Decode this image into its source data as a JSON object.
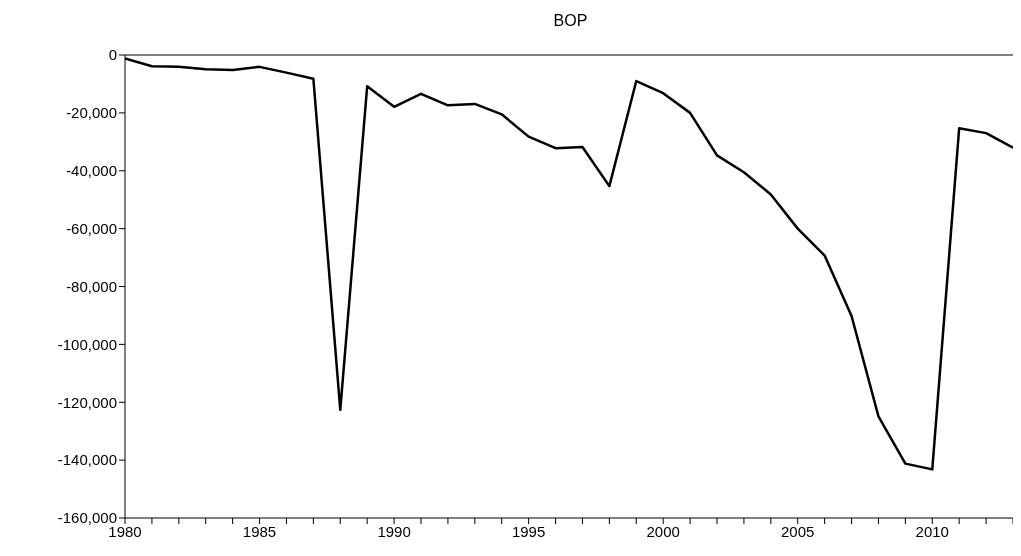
{
  "chart_data": {
    "type": "line",
    "title": "BOP",
    "x": [
      1980,
      1981,
      1982,
      1983,
      1984,
      1985,
      1986,
      1987,
      1988,
      1989,
      1990,
      1991,
      1992,
      1993,
      1994,
      1995,
      1996,
      1997,
      1998,
      1999,
      2000,
      2001,
      2002,
      2003,
      2004,
      2005,
      2006,
      2007,
      2008,
      2009,
      2010,
      2011,
      2012,
      2013
    ],
    "series": [
      {
        "color": "#000000",
        "values": [
          -1200,
          -3900,
          -4100,
          -4900,
          -5200,
          -4100,
          -6100,
          -8200,
          -122600,
          -10800,
          -17900,
          -13400,
          -17400,
          -16900,
          -20500,
          -28200,
          -32200,
          -31800,
          -45300,
          -9000,
          -13200,
          -20000,
          -34700,
          -40500,
          -48200,
          -60000,
          -69300,
          -90200,
          -124900,
          -141200,
          -143200,
          -25300,
          -27000,
          -32000
        ]
      }
    ],
    "xlim": [
      1980,
      2013
    ],
    "xticks": [
      1980,
      {
        "value": 1981,
        "label": null
      },
      {
        "value": 1982,
        "label": null
      },
      {
        "value": 1983,
        "label": null
      },
      {
        "value": 1984,
        "label": null
      },
      1985,
      {
        "value": 1986,
        "label": null
      },
      {
        "value": 1987,
        "label": null
      },
      {
        "value": 1988,
        "label": null
      },
      {
        "value": 1989,
        "label": null
      },
      1990,
      {
        "value": 1991,
        "label": null
      },
      {
        "value": 1992,
        "label": null
      },
      {
        "value": 1993,
        "label": null
      },
      {
        "value": 1994,
        "label": null
      },
      1995,
      {
        "value": 1996,
        "label": null
      },
      {
        "value": 1997,
        "label": null
      },
      {
        "value": 1998,
        "label": null
      },
      {
        "value": 1999,
        "label": null
      },
      2000,
      {
        "value": 2001,
        "label": null
      },
      {
        "value": 2002,
        "label": null
      },
      {
        "value": 2003,
        "label": null
      },
      {
        "value": 2004,
        "label": null
      },
      2005,
      {
        "value": 2006,
        "label": null
      },
      {
        "value": 2007,
        "label": null
      },
      {
        "value": 2008,
        "label": null
      },
      {
        "value": 2009,
        "label": null
      },
      2010,
      {
        "value": 2011,
        "label": null
      },
      {
        "value": 2012,
        "label": null
      },
      {
        "value": 2013,
        "label": null
      }
    ],
    "ylim": [
      -160000,
      0
    ],
    "yticks": [
      {
        "value": 0,
        "label": "0"
      },
      {
        "value": -20000,
        "label": "-20,000"
      },
      {
        "value": -40000,
        "label": "-40,000"
      },
      {
        "value": -60000,
        "label": "-60,000"
      },
      {
        "value": -80000,
        "label": "-80,000"
      },
      {
        "value": -100000,
        "label": "-100,000"
      },
      {
        "value": -120000,
        "label": "-120,000"
      },
      {
        "value": -140000,
        "label": "-140,000"
      },
      {
        "value": -160000,
        "label": "-160,000"
      }
    ],
    "grid": false,
    "legend": false,
    "marker": "none",
    "line_style": "solid"
  }
}
